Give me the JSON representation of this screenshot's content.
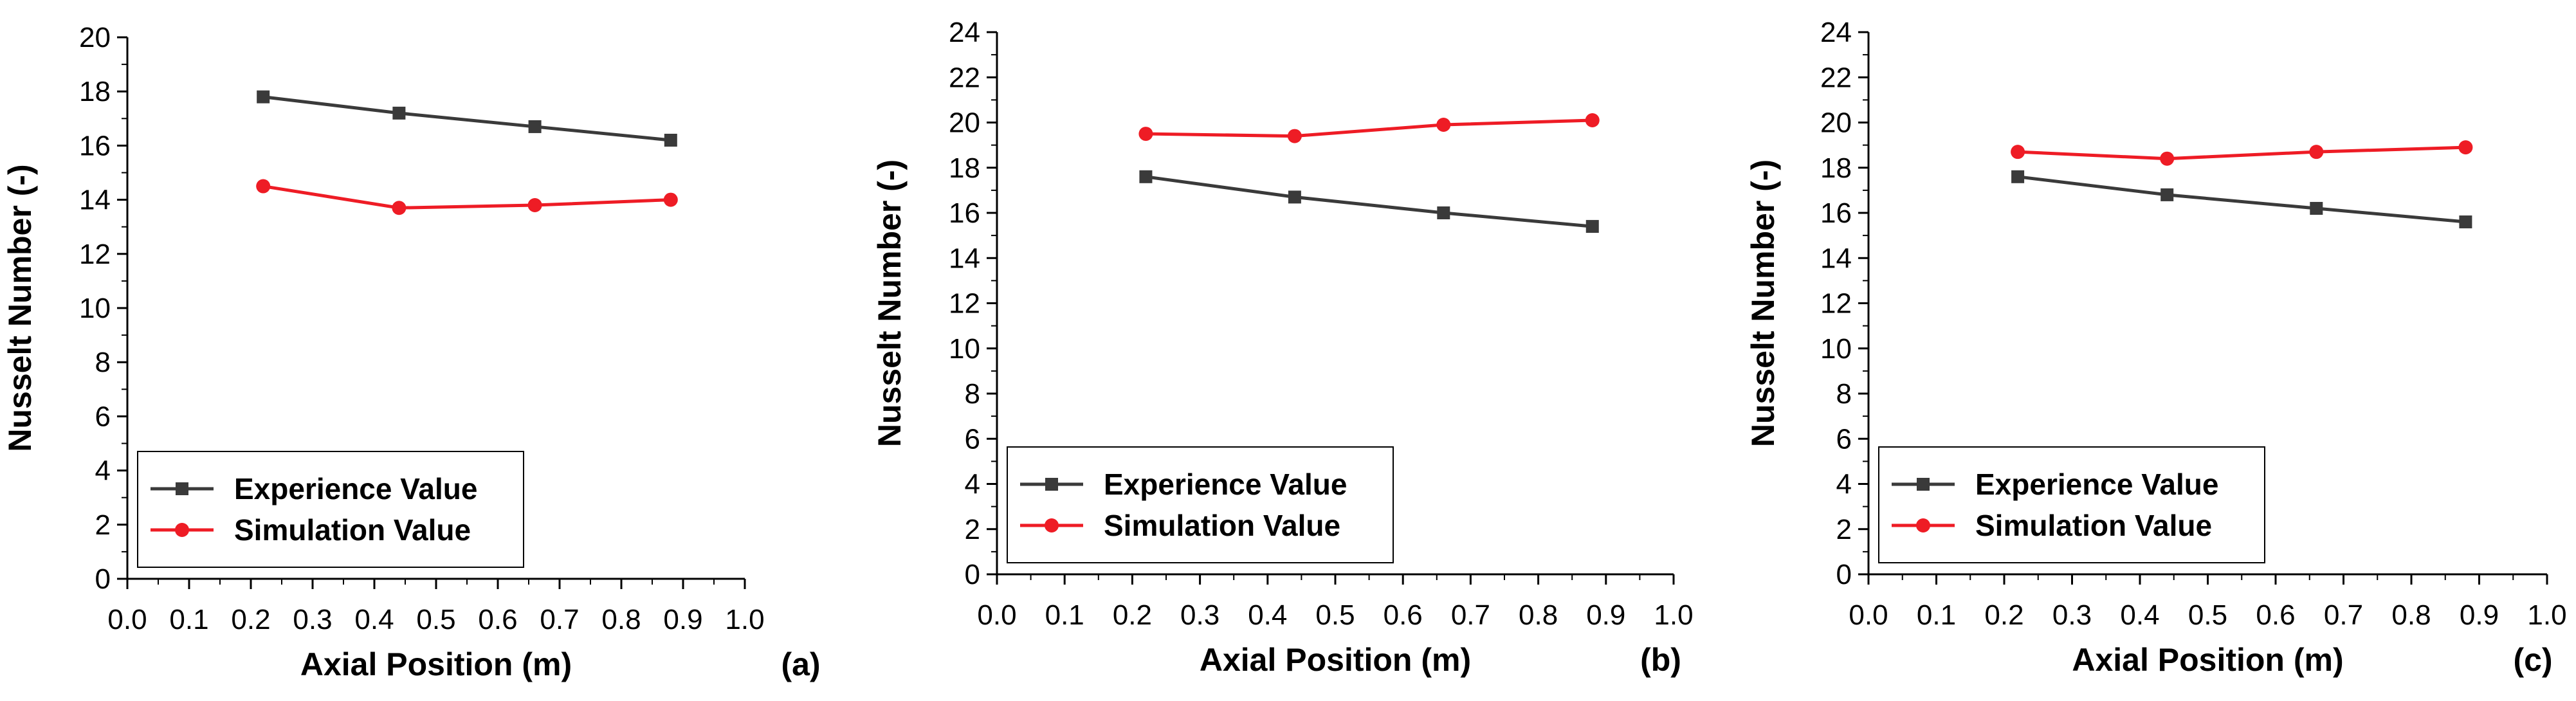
{
  "chart_data": [
    {
      "type": "line",
      "panel_label": "(a)",
      "xlabel": "Axial Position (m)",
      "ylabel": "Nusselt Number (-)",
      "xlim": [
        0.0,
        1.0
      ],
      "ylim": [
        0,
        20
      ],
      "xticks": [
        "0.0",
        "0.1",
        "0.2",
        "0.3",
        "0.4",
        "0.5",
        "0.6",
        "0.7",
        "0.8",
        "0.9",
        "1.0"
      ],
      "yticks": [
        "0",
        "2",
        "4",
        "6",
        "8",
        "10",
        "12",
        "14",
        "16",
        "18",
        "20"
      ],
      "legend_position": "bottom-left",
      "series": [
        {
          "name": "Experience Value",
          "color": "#3a3a3a",
          "marker": "square",
          "x": [
            0.22,
            0.44,
            0.66,
            0.88
          ],
          "values": [
            17.8,
            17.2,
            16.7,
            16.2
          ]
        },
        {
          "name": "Simulation Value",
          "color": "#ee1c25",
          "marker": "circle",
          "x": [
            0.22,
            0.44,
            0.66,
            0.88
          ],
          "values": [
            14.5,
            13.7,
            13.8,
            14.0
          ]
        }
      ]
    },
    {
      "type": "line",
      "panel_label": "(b)",
      "xlabel": "Axial Position (m)",
      "ylabel": "Nusselt Number (-)",
      "xlim": [
        0.0,
        1.0
      ],
      "ylim": [
        0,
        24
      ],
      "xticks": [
        "0.0",
        "0.1",
        "0.2",
        "0.3",
        "0.4",
        "0.5",
        "0.6",
        "0.7",
        "0.8",
        "0.9",
        "1.0"
      ],
      "yticks": [
        "0",
        "2",
        "4",
        "6",
        "8",
        "10",
        "12",
        "14",
        "16",
        "18",
        "20",
        "22",
        "24"
      ],
      "legend_position": "bottom-left",
      "series": [
        {
          "name": "Experience Value",
          "color": "#3a3a3a",
          "marker": "square",
          "x": [
            0.22,
            0.44,
            0.66,
            0.88
          ],
          "values": [
            17.6,
            16.7,
            16.0,
            15.4
          ]
        },
        {
          "name": "Simulation Value",
          "color": "#ee1c25",
          "marker": "circle",
          "x": [
            0.22,
            0.44,
            0.66,
            0.88
          ],
          "values": [
            19.5,
            19.4,
            19.9,
            20.1
          ]
        }
      ]
    },
    {
      "type": "line",
      "panel_label": "(c)",
      "xlabel": "Axial Position (m)",
      "ylabel": "Nusselt Number (-)",
      "xlim": [
        0.0,
        1.0
      ],
      "ylim": [
        0,
        24
      ],
      "xticks": [
        "0.0",
        "0.1",
        "0.2",
        "0.3",
        "0.4",
        "0.5",
        "0.6",
        "0.7",
        "0.8",
        "0.9",
        "1.0"
      ],
      "yticks": [
        "0",
        "2",
        "4",
        "6",
        "8",
        "10",
        "12",
        "14",
        "16",
        "18",
        "20",
        "22",
        "24"
      ],
      "legend_position": "bottom-left",
      "series": [
        {
          "name": "Experience Value",
          "color": "#3a3a3a",
          "marker": "square",
          "x": [
            0.22,
            0.44,
            0.66,
            0.88
          ],
          "values": [
            17.6,
            16.8,
            16.2,
            15.6
          ]
        },
        {
          "name": "Simulation Value",
          "color": "#ee1c25",
          "marker": "circle",
          "x": [
            0.22,
            0.44,
            0.66,
            0.88
          ],
          "values": [
            18.7,
            18.4,
            18.7,
            18.9
          ]
        }
      ]
    }
  ]
}
